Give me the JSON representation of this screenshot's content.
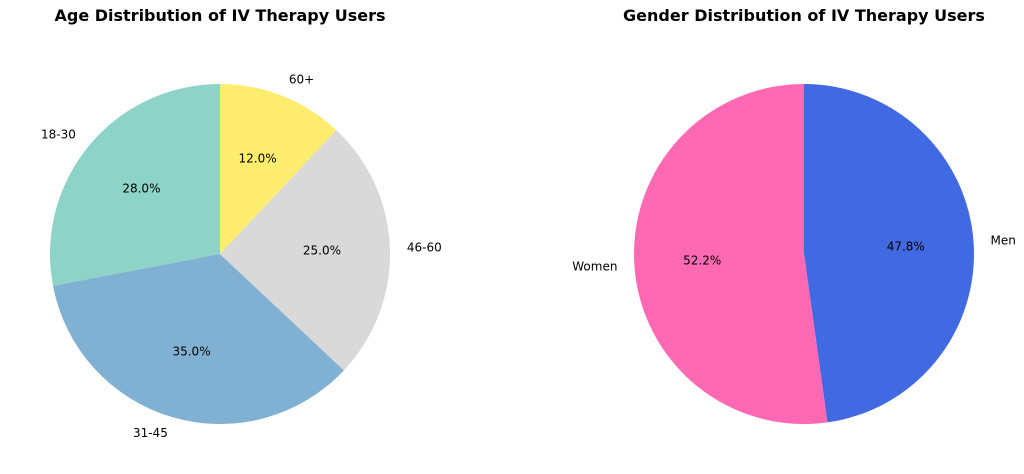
{
  "chart_data": [
    {
      "type": "pie",
      "title": "Age Distribution of IV Therapy Users",
      "categories": [
        "18-30",
        "31-45",
        "46-60",
        "60+"
      ],
      "values": [
        28.0,
        35.0,
        25.0,
        12.0
      ],
      "value_labels": [
        "28.0%",
        "35.0%",
        "25.0%",
        "12.0%"
      ],
      "colors": [
        "#8dd3c7",
        "#80b1d3",
        "#d9d9d9",
        "#ffed6f"
      ],
      "start_angle_deg": 90,
      "direction": "counterclockwise"
    },
    {
      "type": "pie",
      "title": "Gender Distribution of IV Therapy Users",
      "categories": [
        "Men",
        "Women"
      ],
      "values": [
        47.8,
        52.2
      ],
      "value_labels": [
        "47.8%",
        "52.2%"
      ],
      "colors": [
        "#4169e1",
        "#ff69b4"
      ],
      "start_angle_deg": 90,
      "direction": "clockwise"
    }
  ]
}
